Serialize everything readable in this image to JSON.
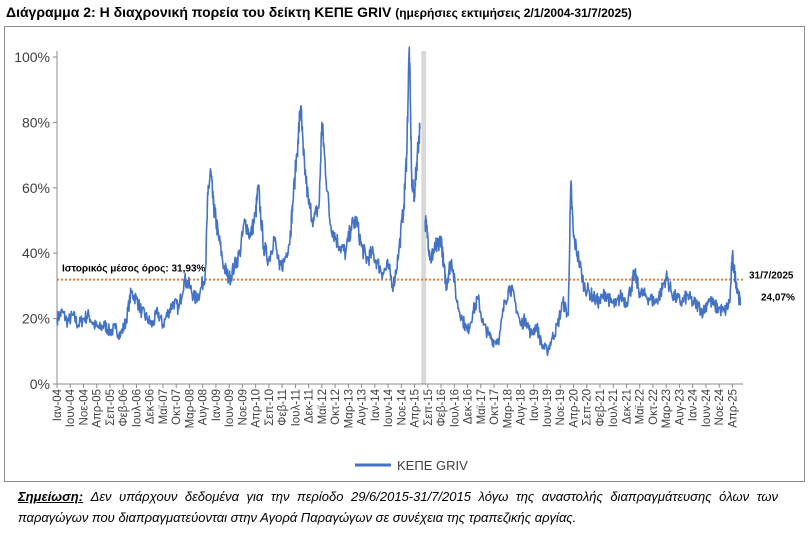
{
  "title": {
    "main": "Διάγραμμα 2: Η διαχρονική πορεία του δείκτη ΚΕΠΕ GRIV",
    "sub": "(ημερήσιες εκτιμήσεις 2/1/2004-31/7/2025)"
  },
  "note": {
    "label": "Σημείωση:",
    "text": "Δεν υπάρχουν δεδομένα για την περίοδο 29/6/2015-31/7/2015 λόγω της αναστολής διαπραγμάτευσης όλων των παραγώγων που διαπραγματεύονται στην Αγορά Παραγώγων σε συνέχεια της τραπεζικής αργίας."
  },
  "colors": {
    "series": "#4472c4",
    "mean_line": "#ed7d31",
    "gap_band": "#d9d9d9",
    "axis": "#8c8c8c"
  },
  "chart_data": {
    "type": "line",
    "title": "",
    "xlabel": "",
    "ylabel": "",
    "ylim": [
      0,
      1.0
    ],
    "y_ticks": [
      "0%",
      "20%",
      "40%",
      "60%",
      "80%",
      "100%"
    ],
    "grid": false,
    "legend": {
      "position": "bottom",
      "entries": [
        "ΚΕΠΕ GRIV"
      ]
    },
    "x_range": [
      "2004-01",
      "2025-07"
    ],
    "x_tick_labels": [
      "Ιαν-04",
      "Ιουν-04",
      "Νοε-04",
      "Απρ-05",
      "Σεπ-05",
      "Φεβ-06",
      "Ιουλ-06",
      "Δεκ-06",
      "Μαϊ-07",
      "Οκτ-07",
      "Μαρ-08",
      "Αυγ-08",
      "Ιαν-09",
      "Ιουν-09",
      "Νοε-09",
      "Απρ-10",
      "Σεπ-10",
      "Φεβ-11",
      "Ιουλ-11",
      "Δεκ-11",
      "Μαϊ-12",
      "Οκτ-12",
      "Μαρ-13",
      "Αυγ-13",
      "Ιαν-14",
      "Ιουν-14",
      "Νοε-14",
      "Απρ-15",
      "Σεπ-15",
      "Φεβ-16",
      "Ιουλ-16",
      "Δεκ-16",
      "Μαϊ-17",
      "Οκτ-17",
      "Μαρ-18",
      "Αυγ-18",
      "Ιαν-19",
      "Ιουν-19",
      "Νοε-19",
      "Απρ-20",
      "Σεπ-20",
      "Φεβ-21",
      "Ιουλ-21",
      "Δεκ-21",
      "Μαϊ-22",
      "Οκτ-22",
      "Μαρ-23",
      "Αυγ-23",
      "Ιαν-24",
      "Ιουν-24",
      "Νοε-24",
      "Απρ-25"
    ],
    "gap_period": [
      "2015-06-29",
      "2015-07-31"
    ],
    "reference_line": {
      "value": 0.3193,
      "label": "Ιστορικός μέσος όρος: 31,93%"
    },
    "end_annotation": {
      "date": "31/7/2025",
      "value_label": "24,07%"
    },
    "series": [
      {
        "name": "ΚΕΠΕ GRIV",
        "points": [
          [
            "2004-01",
            0.2
          ],
          [
            "2004-03",
            0.22
          ],
          [
            "2004-05",
            0.19
          ],
          [
            "2004-07",
            0.21
          ],
          [
            "2004-09",
            0.18
          ],
          [
            "2004-11",
            0.2
          ],
          [
            "2005-01",
            0.21
          ],
          [
            "2005-03",
            0.18
          ],
          [
            "2005-05",
            0.17
          ],
          [
            "2005-07",
            0.18
          ],
          [
            "2005-09",
            0.16
          ],
          [
            "2005-11",
            0.17
          ],
          [
            "2006-01",
            0.15
          ],
          [
            "2006-03",
            0.19
          ],
          [
            "2006-05",
            0.28
          ],
          [
            "2006-07",
            0.26
          ],
          [
            "2006-09",
            0.22
          ],
          [
            "2006-11",
            0.2
          ],
          [
            "2007-01",
            0.18
          ],
          [
            "2007-03",
            0.22
          ],
          [
            "2007-05",
            0.18
          ],
          [
            "2007-07",
            0.22
          ],
          [
            "2007-09",
            0.25
          ],
          [
            "2007-11",
            0.23
          ],
          [
            "2008-01",
            0.32
          ],
          [
            "2008-03",
            0.3
          ],
          [
            "2008-05",
            0.26
          ],
          [
            "2008-07",
            0.28
          ],
          [
            "2008-09",
            0.34
          ],
          [
            "2008-10",
            0.58
          ],
          [
            "2008-11",
            0.65
          ],
          [
            "2008-12",
            0.55
          ],
          [
            "2009-01",
            0.5
          ],
          [
            "2009-02",
            0.45
          ],
          [
            "2009-04",
            0.36
          ],
          [
            "2009-06",
            0.32
          ],
          [
            "2009-08",
            0.36
          ],
          [
            "2009-10",
            0.4
          ],
          [
            "2009-12",
            0.5
          ],
          [
            "2010-02",
            0.45
          ],
          [
            "2010-04",
            0.52
          ],
          [
            "2010-05",
            0.6
          ],
          [
            "2010-07",
            0.42
          ],
          [
            "2010-09",
            0.38
          ],
          [
            "2010-11",
            0.45
          ],
          [
            "2011-01",
            0.35
          ],
          [
            "2011-03",
            0.38
          ],
          [
            "2011-05",
            0.45
          ],
          [
            "2011-06",
            0.55
          ],
          [
            "2011-08",
            0.75
          ],
          [
            "2011-09",
            0.85
          ],
          [
            "2011-10",
            0.7
          ],
          [
            "2011-12",
            0.55
          ],
          [
            "2012-02",
            0.5
          ],
          [
            "2012-04",
            0.55
          ],
          [
            "2012-05",
            0.8
          ],
          [
            "2012-06",
            0.7
          ],
          [
            "2012-08",
            0.5
          ],
          [
            "2012-10",
            0.45
          ],
          [
            "2012-12",
            0.42
          ],
          [
            "2013-02",
            0.4
          ],
          [
            "2013-04",
            0.48
          ],
          [
            "2013-06",
            0.5
          ],
          [
            "2013-08",
            0.42
          ],
          [
            "2013-10",
            0.38
          ],
          [
            "2013-12",
            0.4
          ],
          [
            "2014-02",
            0.37
          ],
          [
            "2014-04",
            0.34
          ],
          [
            "2014-06",
            0.36
          ],
          [
            "2014-08",
            0.3
          ],
          [
            "2014-10",
            0.4
          ],
          [
            "2014-12",
            0.55
          ],
          [
            "2015-01",
            0.7
          ],
          [
            "2015-02",
            1.03
          ],
          [
            "2015-03",
            0.6
          ],
          [
            "2015-04",
            0.58
          ],
          [
            "2015-05",
            0.7
          ],
          [
            "2015-06",
            0.78
          ],
          [
            null,
            null
          ],
          [
            "2015-08",
            0.5
          ],
          [
            "2015-09",
            0.45
          ],
          [
            "2015-10",
            0.38
          ],
          [
            "2015-11",
            0.4
          ],
          [
            "2015-12",
            0.42
          ],
          [
            "2016-01",
            0.42
          ],
          [
            "2016-02",
            0.45
          ],
          [
            "2016-03",
            0.36
          ],
          [
            "2016-04",
            0.3
          ],
          [
            "2016-05",
            0.35
          ],
          [
            "2016-06",
            0.38
          ],
          [
            "2016-08",
            0.25
          ],
          [
            "2016-10",
            0.2
          ],
          [
            "2016-12",
            0.16
          ],
          [
            "2017-02",
            0.22
          ],
          [
            "2017-04",
            0.26
          ],
          [
            "2017-06",
            0.18
          ],
          [
            "2017-08",
            0.15
          ],
          [
            "2017-10",
            0.13
          ],
          [
            "2017-12",
            0.14
          ],
          [
            "2018-02",
            0.25
          ],
          [
            "2018-04",
            0.3
          ],
          [
            "2018-06",
            0.25
          ],
          [
            "2018-08",
            0.18
          ],
          [
            "2018-10",
            0.2
          ],
          [
            "2018-12",
            0.15
          ],
          [
            "2019-02",
            0.18
          ],
          [
            "2019-04",
            0.12
          ],
          [
            "2019-06",
            0.1
          ],
          [
            "2019-08",
            0.14
          ],
          [
            "2019-10",
            0.18
          ],
          [
            "2019-12",
            0.25
          ],
          [
            "2020-02",
            0.21
          ],
          [
            "2020-03",
            0.61
          ],
          [
            "2020-04",
            0.45
          ],
          [
            "2020-06",
            0.38
          ],
          [
            "2020-08",
            0.3
          ],
          [
            "2020-10",
            0.28
          ],
          [
            "2020-12",
            0.26
          ],
          [
            "2021-02",
            0.25
          ],
          [
            "2021-04",
            0.28
          ],
          [
            "2021-06",
            0.25
          ],
          [
            "2021-08",
            0.24
          ],
          [
            "2021-10",
            0.27
          ],
          [
            "2021-12",
            0.25
          ],
          [
            "2022-02",
            0.3
          ],
          [
            "2022-03",
            0.34
          ],
          [
            "2022-05",
            0.28
          ],
          [
            "2022-07",
            0.27
          ],
          [
            "2022-09",
            0.26
          ],
          [
            "2022-11",
            0.25
          ],
          [
            "2023-01",
            0.28
          ],
          [
            "2023-03",
            0.33
          ],
          [
            "2023-05",
            0.28
          ],
          [
            "2023-07",
            0.26
          ],
          [
            "2023-09",
            0.25
          ],
          [
            "2023-11",
            0.27
          ],
          [
            "2024-01",
            0.25
          ],
          [
            "2024-03",
            0.24
          ],
          [
            "2024-05",
            0.22
          ],
          [
            "2024-07",
            0.26
          ],
          [
            "2024-09",
            0.24
          ],
          [
            "2024-11",
            0.23
          ],
          [
            "2025-01",
            0.22
          ],
          [
            "2025-03",
            0.25
          ],
          [
            "2025-04",
            0.39
          ],
          [
            "2025-05",
            0.33
          ],
          [
            "2025-06",
            0.29
          ],
          [
            "2025-07",
            0.2407
          ]
        ]
      }
    ]
  }
}
